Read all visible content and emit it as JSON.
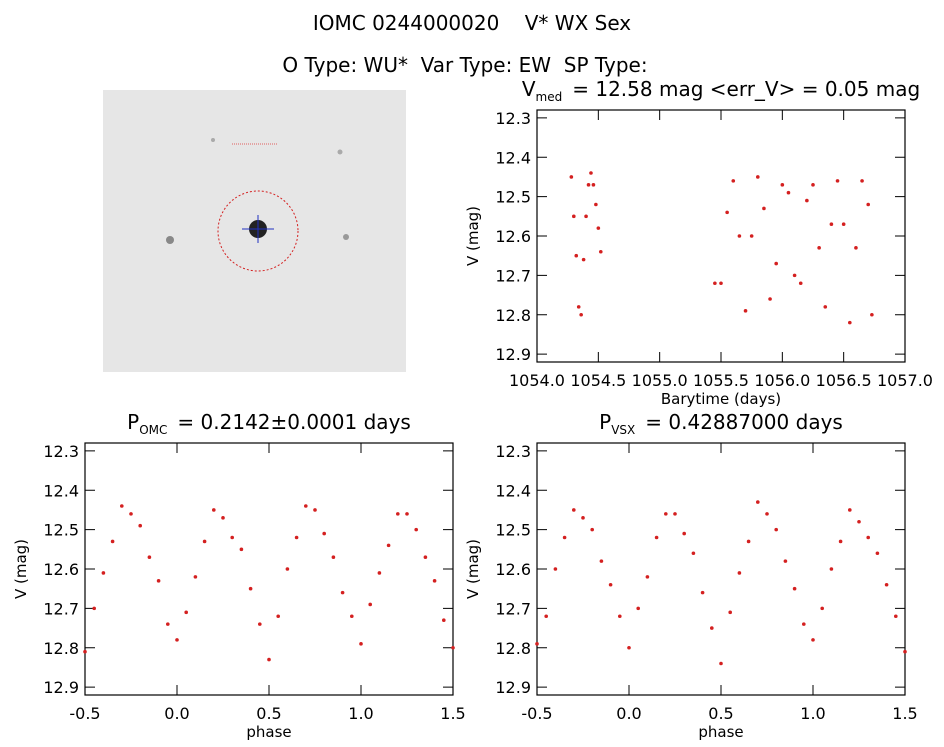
{
  "header": {
    "title": "IOMC 0244000020    V* WX Sex",
    "subtitle": "O Type: WU*  Var Type: EW  SP Type:"
  },
  "chart_data": [
    {
      "type": "scatter",
      "title_parts": [
        "V",
        "med",
        "= 12.58 mag <err_V> = 0.05 mag"
      ],
      "x_label": "Barytime (days)",
      "y_label": "V (mag)",
      "color": "#d42020",
      "xlim": [
        1054,
        1057
      ],
      "xticks": [
        {
          "value": 1054,
          "label": "1054.0"
        },
        1054.5,
        {
          "value": 1055,
          "label": "1055.0"
        },
        1055.5,
        {
          "value": 1056,
          "label": "1056.0"
        },
        1056.5,
        {
          "value": 1057,
          "label": "1057.0"
        }
      ],
      "ylim": [
        12.92,
        12.28
      ],
      "yticks": [
        12.3,
        12.4,
        12.5,
        12.6,
        12.7,
        12.8,
        12.9
      ],
      "x": [
        1054.28,
        1054.3,
        1054.32,
        1054.34,
        1054.36,
        1054.38,
        1054.4,
        1054.42,
        1054.44,
        1054.46,
        1054.48,
        1054.5,
        1054.52,
        1055.45,
        1055.5,
        1055.55,
        1055.6,
        1055.65,
        1055.7,
        1055.75,
        1055.8,
        1055.85,
        1055.9,
        1055.95,
        1056.0,
        1056.05,
        1056.1,
        1056.15,
        1056.2,
        1056.25,
        1056.3,
        1056.35,
        1056.4,
        1056.45,
        1056.5,
        1056.55,
        1056.6,
        1056.65,
        1056.7,
        1056.73
      ],
      "values": [
        12.45,
        12.55,
        12.65,
        12.78,
        12.8,
        12.66,
        12.55,
        12.47,
        12.44,
        12.47,
        12.52,
        12.58,
        12.64,
        12.72,
        12.72,
        12.54,
        12.46,
        12.6,
        12.79,
        12.6,
        12.45,
        12.53,
        12.76,
        12.67,
        12.47,
        12.49,
        12.7,
        12.72,
        12.51,
        12.47,
        12.63,
        12.78,
        12.57,
        12.46,
        12.57,
        12.82,
        12.63,
        12.46,
        12.52,
        12.8
      ]
    },
    {
      "type": "scatter",
      "title_parts": [
        "P",
        "OMC",
        "= 0.2142±0.0001 days"
      ],
      "x_label": "phase",
      "y_label": "V (mag)",
      "color": "#d42020",
      "xlim": [
        -0.5,
        1.5
      ],
      "xticks": [
        -0.5,
        {
          "value": 0,
          "label": "0.0"
        },
        0.5,
        {
          "value": 1,
          "label": "1.0"
        },
        1.5
      ],
      "ylim": [
        12.92,
        12.28
      ],
      "yticks": [
        12.3,
        12.4,
        12.5,
        12.6,
        12.7,
        12.8,
        12.9
      ],
      "x": [
        -0.5,
        -0.45,
        -0.4,
        -0.35,
        -0.3,
        -0.25,
        -0.2,
        -0.15,
        -0.1,
        -0.05,
        0,
        0.05,
        0.1,
        0.15,
        0.2,
        0.25,
        0.3,
        0.35,
        0.4,
        0.45,
        0.5,
        0.55,
        0.6,
        0.65,
        0.7,
        0.75,
        0.8,
        0.85,
        0.9,
        0.95,
        1,
        1.05,
        1.1,
        1.15,
        1.2,
        1.25,
        1.3,
        1.35,
        1.4,
        1.45,
        1.5
      ],
      "values": [
        12.81,
        12.7,
        12.61,
        12.53,
        12.44,
        12.46,
        12.49,
        12.57,
        12.63,
        12.74,
        12.78,
        12.71,
        12.62,
        12.53,
        12.45,
        12.47,
        12.52,
        12.55,
        12.65,
        12.74,
        12.83,
        12.72,
        12.6,
        12.52,
        12.44,
        12.45,
        12.51,
        12.57,
        12.66,
        12.72,
        12.79,
        12.69,
        12.61,
        12.54,
        12.46,
        12.46,
        12.5,
        12.57,
        12.63,
        12.73,
        12.8
      ]
    },
    {
      "type": "scatter",
      "title_parts": [
        "P",
        "VSX",
        "= 0.42887000 days"
      ],
      "x_label": "phase",
      "y_label": "V (mag)",
      "color": "#d42020",
      "xlim": [
        -0.5,
        1.5
      ],
      "xticks": [
        -0.5,
        {
          "value": 0,
          "label": "0.0"
        },
        0.5,
        {
          "value": 1,
          "label": "1.0"
        },
        1.5
      ],
      "ylim": [
        12.92,
        12.28
      ],
      "yticks": [
        12.3,
        12.4,
        12.5,
        12.6,
        12.7,
        12.8,
        12.9
      ],
      "x": [
        -0.5,
        -0.45,
        -0.4,
        -0.35,
        -0.3,
        -0.25,
        -0.2,
        -0.15,
        -0.1,
        -0.05,
        0,
        0.05,
        0.1,
        0.15,
        0.2,
        0.25,
        0.3,
        0.35,
        0.4,
        0.45,
        0.5,
        0.55,
        0.6,
        0.65,
        0.7,
        0.75,
        0.8,
        0.85,
        0.9,
        0.95,
        1,
        1.05,
        1.1,
        1.15,
        1.2,
        1.25,
        1.3,
        1.35,
        1.4,
        1.45,
        1.5
      ],
      "values": [
        12.79,
        12.72,
        12.6,
        12.52,
        12.45,
        12.47,
        12.5,
        12.58,
        12.64,
        12.72,
        12.8,
        12.7,
        12.62,
        12.52,
        12.46,
        12.46,
        12.51,
        12.56,
        12.66,
        12.75,
        12.84,
        12.71,
        12.61,
        12.53,
        12.43,
        12.46,
        12.5,
        12.58,
        12.65,
        12.74,
        12.78,
        12.7,
        12.6,
        12.53,
        12.45,
        12.48,
        12.52,
        12.56,
        12.64,
        12.72,
        12.81
      ]
    }
  ]
}
